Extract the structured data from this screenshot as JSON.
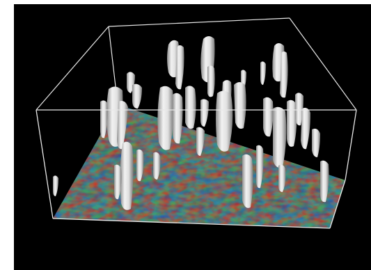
{
  "scene": {
    "background_color": "#000000",
    "box_edge_color": "#e8e8e8",
    "isosurface_color": "#e6e6e6",
    "field_palette": [
      "#1a2a8c",
      "#2f6fb0",
      "#3a9b8a",
      "#4aa84a",
      "#c9b03a",
      "#d0632a",
      "#c8342a"
    ]
  }
}
